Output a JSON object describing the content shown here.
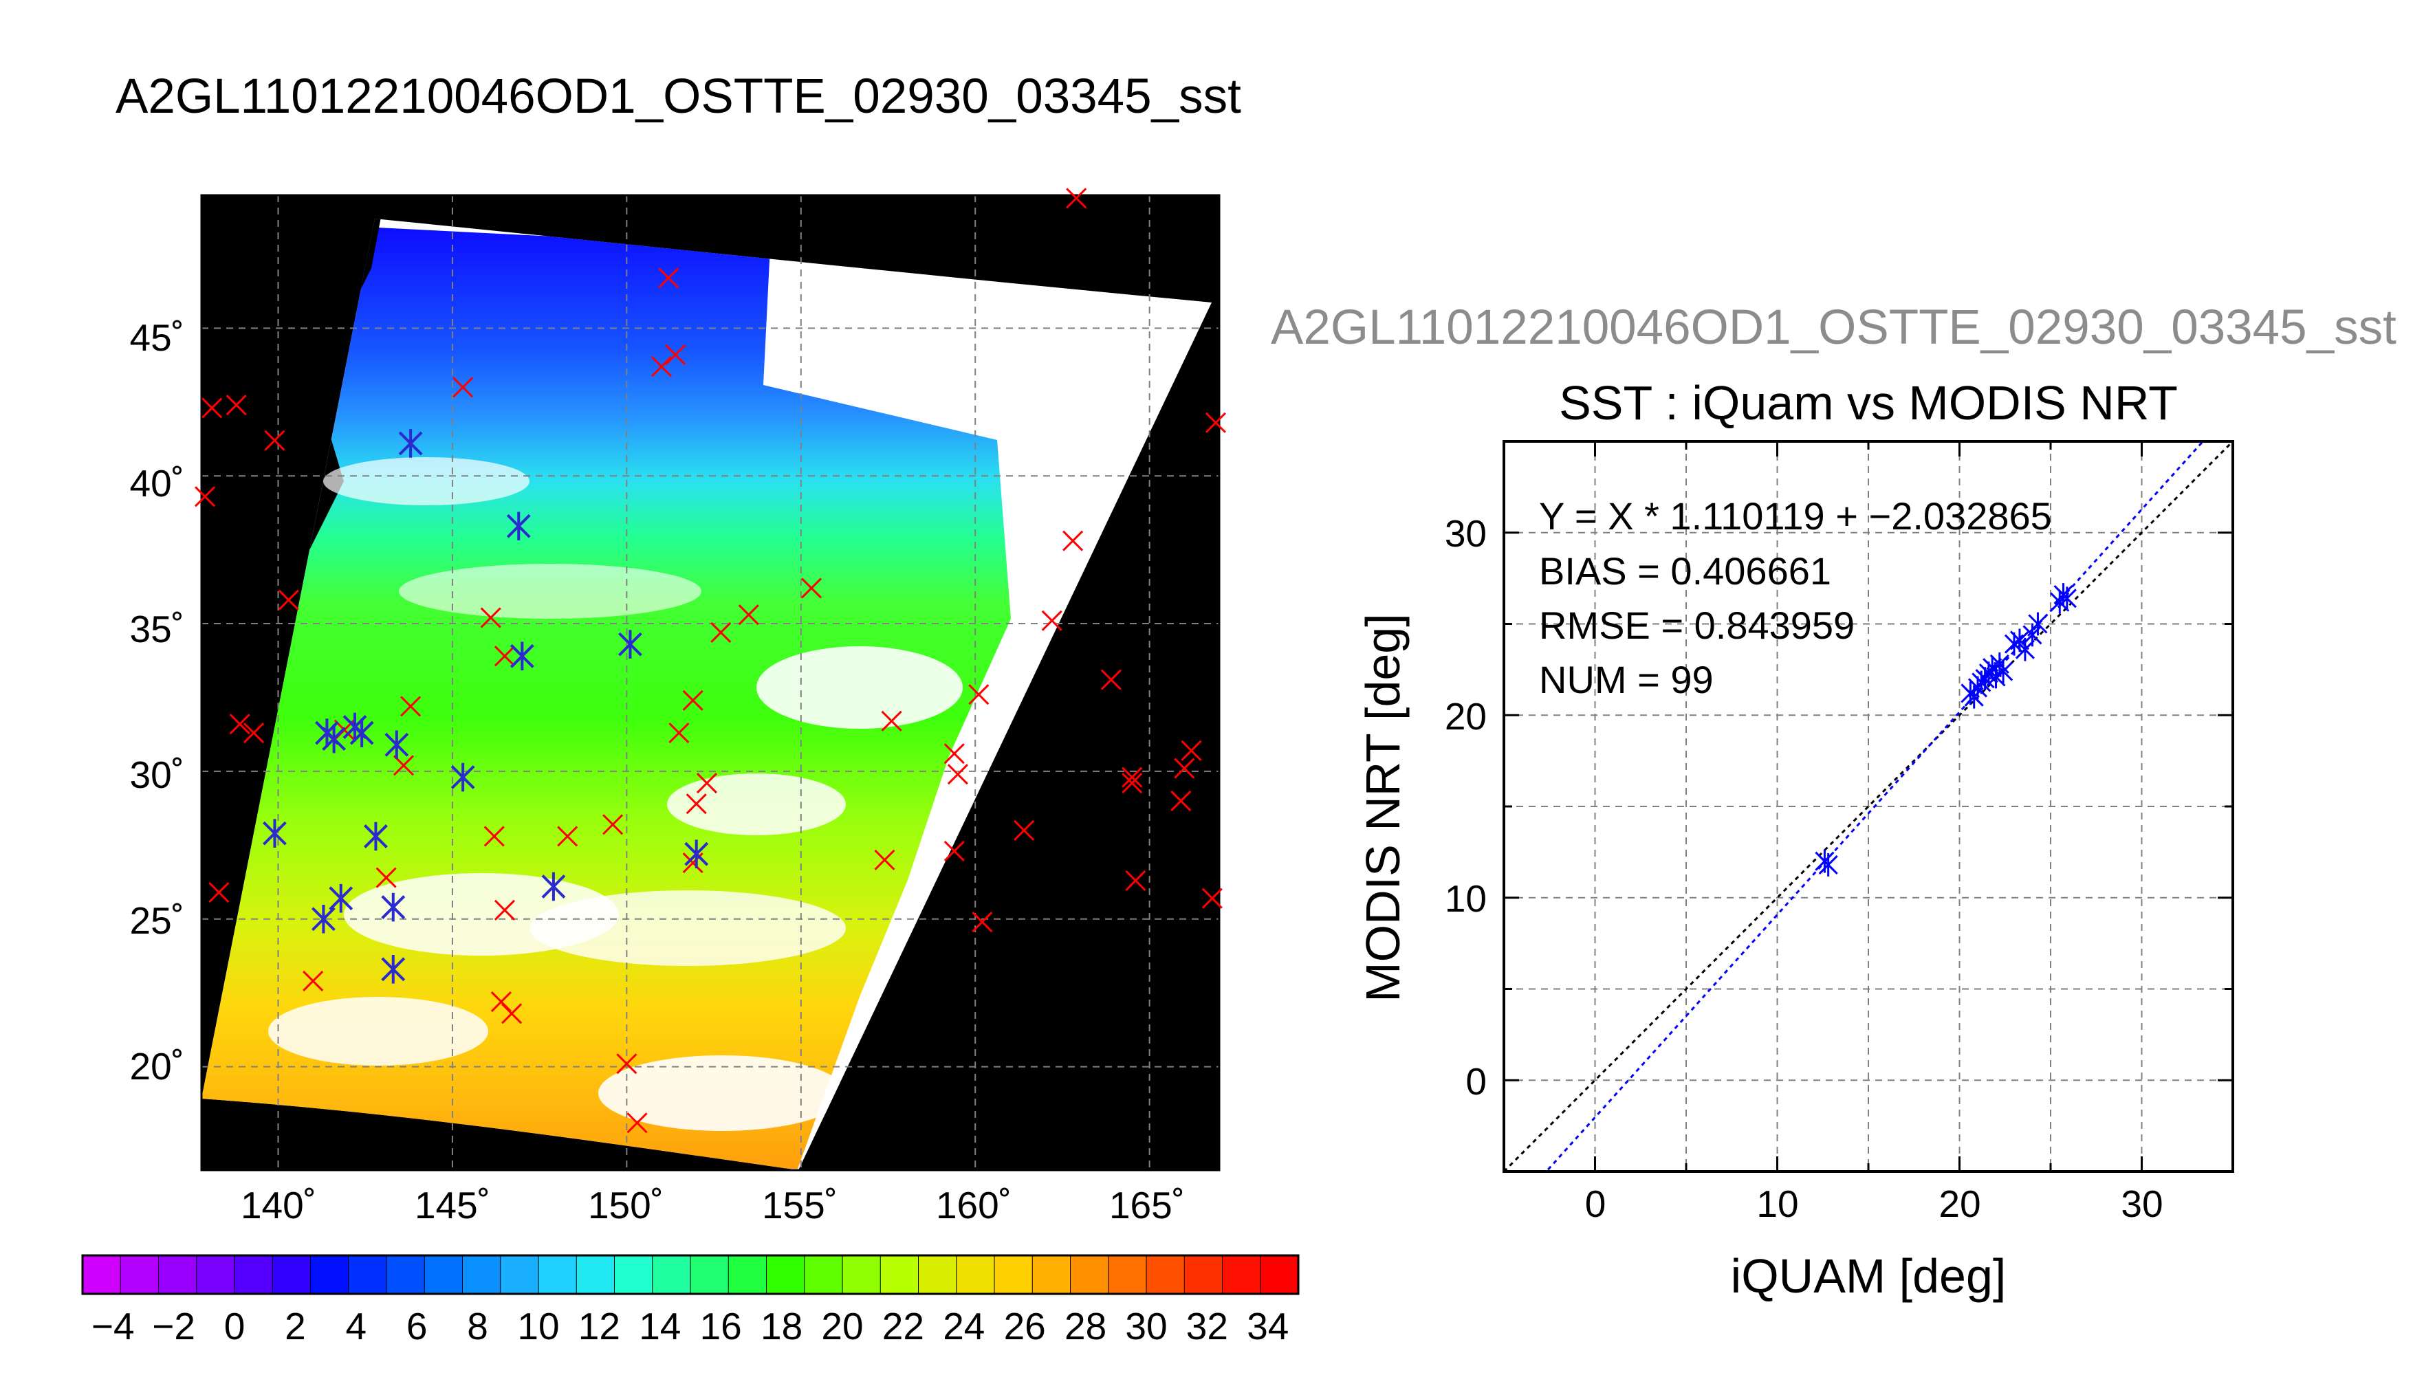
{
  "figure": {
    "title": "A2GL11012210046OD1_OSTTE_02930_03345_sst",
    "colorbar": {
      "ticks": [
        "−4",
        "−2",
        "0",
        "2",
        "4",
        "6",
        "8",
        "10",
        "12",
        "14",
        "16",
        "18",
        "20",
        "22",
        "24",
        "26",
        "28",
        "30",
        "32",
        "34"
      ],
      "range": [
        -5,
        35
      ],
      "colors": [
        "#d000ff",
        "#b300ff",
        "#9900ff",
        "#7a00ff",
        "#5500ff",
        "#3000ff",
        "#0010ff",
        "#0030ff",
        "#0050ff",
        "#0070ff",
        "#0a90ff",
        "#1ab0ff",
        "#20d0ff",
        "#20e8f0",
        "#20ffd0",
        "#20ffa0",
        "#20ff70",
        "#20ff40",
        "#30ff00",
        "#60ff00",
        "#90ff00",
        "#b8ff00",
        "#d8f000",
        "#f0e000",
        "#ffd000",
        "#ffb000",
        "#ff9000",
        "#ff7000",
        "#ff5000",
        "#ff3000",
        "#ff1000",
        "#ff0000"
      ]
    }
  },
  "chart_data": [
    {
      "type": "scatter",
      "title": "",
      "map": true,
      "xlabel": "",
      "ylabel": "",
      "x_ticks": [
        "140˚",
        "145˚",
        "150˚",
        "155˚",
        "160˚",
        "165˚"
      ],
      "y_ticks": [
        "20˚",
        "25˚",
        "30˚",
        "35˚",
        "40˚",
        "45˚"
      ],
      "xlim": [
        137.8,
        167.0
      ],
      "ylim": [
        16.5,
        49.5
      ],
      "grid": true,
      "series": [
        {
          "marker": "x",
          "color": "#ff0000",
          "points": [
            [
              162.9,
              49.4
            ],
            [
              138.1,
              42.3
            ],
            [
              138.8,
              42.4
            ],
            [
              139.9,
              41.2
            ],
            [
              137.9,
              39.3
            ],
            [
              143.8,
              41.1
            ],
            [
              145.3,
              43.0
            ],
            [
              151.0,
              43.7
            ],
            [
              151.4,
              44.1
            ],
            [
              151.2,
              46.7
            ],
            [
              146.9,
              38.3
            ],
            [
              140.3,
              35.8
            ],
            [
              162.8,
              37.8
            ],
            [
              155.3,
              36.2
            ],
            [
              146.1,
              35.2
            ],
            [
              146.5,
              33.9
            ],
            [
              152.7,
              34.7
            ],
            [
              153.5,
              35.3
            ],
            [
              162.2,
              35.1
            ],
            [
              163.9,
              33.1
            ],
            [
              157.6,
              31.7
            ],
            [
              160.1,
              32.6
            ],
            [
              143.8,
              32.2
            ],
            [
              151.9,
              32.4
            ],
            [
              151.5,
              31.3
            ],
            [
              141.9,
              31.4
            ],
            [
              143.6,
              30.2
            ],
            [
              159.4,
              30.6
            ],
            [
              159.5,
              29.9
            ],
            [
              164.5,
              29.8
            ],
            [
              164.5,
              29.6
            ],
            [
              166.0,
              30.1
            ],
            [
              166.2,
              30.7
            ],
            [
              152.3,
              29.6
            ],
            [
              152.0,
              28.9
            ],
            [
              161.4,
              28.0
            ],
            [
              165.9,
              29.0
            ],
            [
              149.6,
              28.2
            ],
            [
              148.3,
              27.8
            ],
            [
              146.2,
              27.8
            ],
            [
              151.9,
              26.9
            ],
            [
              157.4,
              27.0
            ],
            [
              159.4,
              27.3
            ],
            [
              143.1,
              26.4
            ],
            [
              138.3,
              25.9
            ],
            [
              146.5,
              25.3
            ],
            [
              164.6,
              26.3
            ],
            [
              166.8,
              25.7
            ],
            [
              160.2,
              24.9
            ],
            [
              141.0,
              22.9
            ],
            [
              146.4,
              22.2
            ],
            [
              146.7,
              21.8
            ],
            [
              150.0,
              20.1
            ],
            [
              150.3,
              18.1
            ],
            [
              166.9,
              41.8
            ],
            [
              139.3,
              31.3
            ],
            [
              138.9,
              31.6
            ]
          ]
        },
        {
          "marker": "asterisk",
          "color": "#2a2ad0",
          "points": [
            [
              143.8,
              41.1
            ],
            [
              146.9,
              38.3
            ],
            [
              147.0,
              33.9
            ],
            [
              150.1,
              34.3
            ],
            [
              141.4,
              31.3
            ],
            [
              141.6,
              31.1
            ],
            [
              142.2,
              31.5
            ],
            [
              142.4,
              31.3
            ],
            [
              143.4,
              30.9
            ],
            [
              145.3,
              29.8
            ],
            [
              139.9,
              27.9
            ],
            [
              142.8,
              27.8
            ],
            [
              152.0,
              27.2
            ],
            [
              147.9,
              26.1
            ],
            [
              141.8,
              25.7
            ],
            [
              141.3,
              25.0
            ],
            [
              143.3,
              25.4
            ],
            [
              143.3,
              23.3
            ]
          ]
        }
      ]
    },
    {
      "type": "scatter",
      "title": "SST : iQuam vs MODIS NRT",
      "header": "A2GL11012210046OD1_OSTTE_02930_03345_sst",
      "xlabel": "iQUAM [deg]",
      "ylabel": "MODIS NRT [deg]",
      "xlim": [
        -5,
        35
      ],
      "ylim": [
        -5,
        35
      ],
      "x_ticks": [
        "0",
        "10",
        "20",
        "30"
      ],
      "y_ticks": [
        "0",
        "10",
        "20",
        "30"
      ],
      "tick_values": [
        0,
        10,
        20,
        30
      ],
      "grid": true,
      "stats": {
        "fit": "Y = X * 1.110119 + −2.032865",
        "bias": "BIAS = 0.406661",
        "rmse": "RMSE = 0.843959",
        "num": "NUM = 99"
      },
      "fit_line": {
        "slope": 1.110119,
        "intercept": -2.032865,
        "color": "#0000ff"
      },
      "identity_line": {
        "slope": 1,
        "intercept": 0,
        "color": "#000000"
      },
      "series": [
        {
          "marker": "asterisk",
          "color": "#0000ff",
          "x": [
            12.6,
            12.8,
            20.6,
            20.8,
            21.0,
            21.2,
            21.4,
            21.6,
            21.8,
            22.0,
            22.2,
            22.4,
            23.0,
            23.3,
            23.6,
            24.0,
            24.3,
            25.5,
            25.7,
            25.9
          ],
          "y": [
            12.0,
            11.8,
            21.2,
            21.0,
            21.5,
            21.8,
            22.0,
            22.3,
            22.6,
            22.1,
            22.8,
            22.4,
            23.9,
            24.1,
            23.6,
            24.4,
            25.0,
            26.2,
            26.6,
            26.4
          ]
        }
      ]
    }
  ]
}
